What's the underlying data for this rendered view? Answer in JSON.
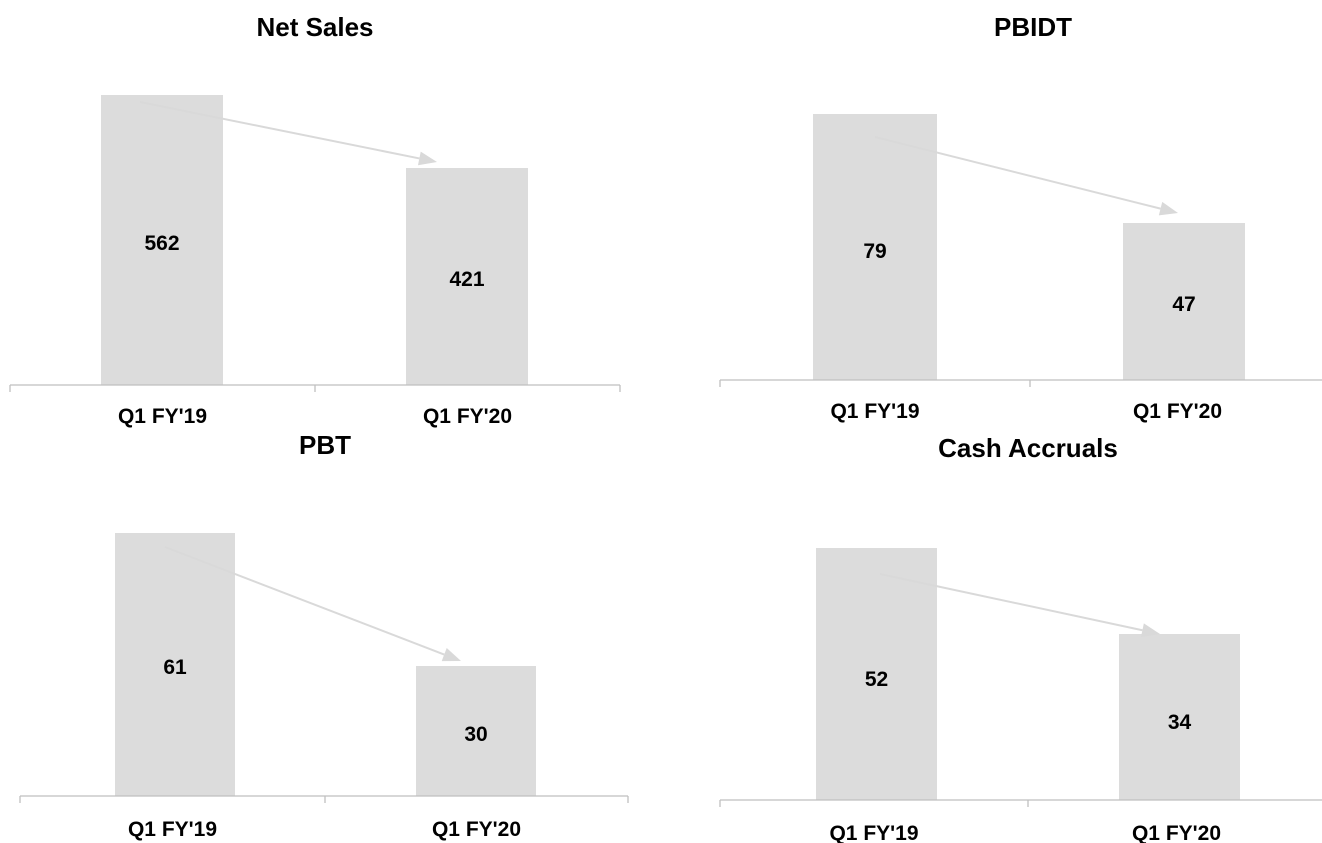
{
  "chart_data": [
    {
      "type": "bar",
      "title": "Net Sales",
      "categories": [
        "Q1 FY'19",
        "Q1 FY'20"
      ],
      "values": [
        562,
        421
      ],
      "trend_arrow": true
    },
    {
      "type": "bar",
      "title": "PBIDT",
      "categories": [
        "Q1 FY'19",
        "Q1 FY'20"
      ],
      "values": [
        79,
        47
      ],
      "trend_arrow": true
    },
    {
      "type": "bar",
      "title": "PBT",
      "categories": [
        "Q1 FY'19",
        "Q1 FY'20"
      ],
      "values": [
        61,
        30
      ],
      "trend_arrow": true
    },
    {
      "type": "bar",
      "title": "Cash Accruals",
      "categories": [
        "Q1 FY'19",
        "Q1 FY'20"
      ],
      "values": [
        52,
        34
      ],
      "trend_arrow": true
    }
  ],
  "colors": {
    "bar": "#dcdcdc",
    "axis": "#bfbfbf",
    "arrow": "#d9d9d9",
    "text": "#000000"
  }
}
